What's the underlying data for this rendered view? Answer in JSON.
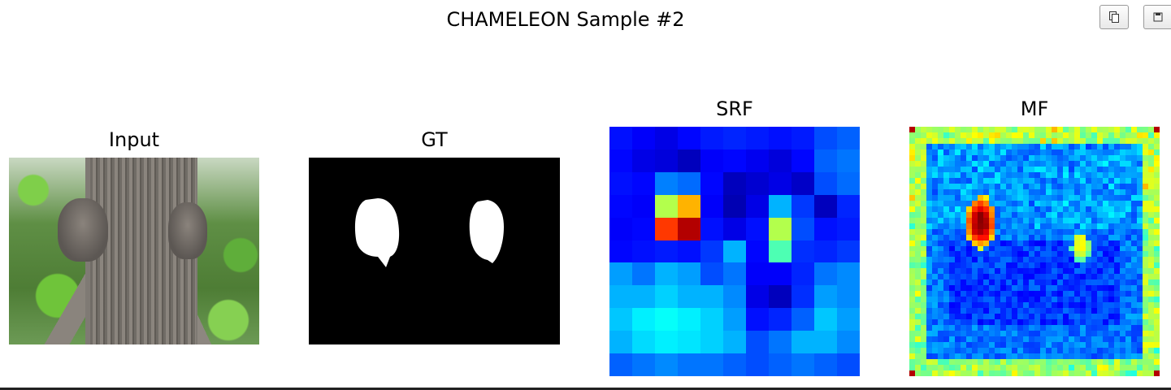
{
  "figure": {
    "title": "CHAMELEON Sample #2"
  },
  "toolbar": {
    "copy_icon": "copy-icon",
    "save_icon": "save-icon"
  },
  "panels": {
    "input": {
      "title": "Input"
    },
    "gt": {
      "title": "GT"
    },
    "srf": {
      "title": "SRF"
    },
    "mf": {
      "title": "MF"
    }
  },
  "colors": {
    "background": "#ffffff",
    "mask_bg": "#000000",
    "mask_fg": "#ffffff"
  }
}
